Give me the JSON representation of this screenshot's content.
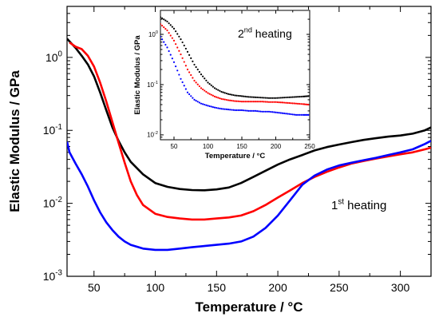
{
  "chart_data": [
    {
      "type": "line",
      "xlabel": "Temperature / °C",
      "ylabel": "Elastic Modulus  / GPa",
      "y_scale": "log",
      "xlim": [
        28,
        325
      ],
      "ylim": [
        0.001,
        5
      ],
      "x_ticks": [
        50,
        100,
        150,
        200,
        250,
        300
      ],
      "x_tick_labels": [
        "50",
        "100",
        "150",
        "200",
        "250",
        "300"
      ],
      "y_ticks": [
        0.001,
        0.01,
        0.1,
        1
      ],
      "y_tick_labels": [
        {
          "base": "10",
          "exp": "-3"
        },
        {
          "base": "10",
          "exp": "-2"
        },
        {
          "base": "10",
          "exp": "-1"
        },
        {
          "base": "10",
          "exp": "0"
        }
      ],
      "annotation": {
        "text": "1",
        "sup": "st",
        "rest": " heating"
      },
      "series": [
        {
          "color": "#000000",
          "points": [
            [
              28,
              1.8
            ],
            [
              35,
              1.35
            ],
            [
              40,
              1.05
            ],
            [
              45,
              0.8
            ],
            [
              50,
              0.55
            ],
            [
              55,
              0.33
            ],
            [
              60,
              0.19
            ],
            [
              65,
              0.11
            ],
            [
              70,
              0.072
            ],
            [
              75,
              0.05
            ],
            [
              80,
              0.037
            ],
            [
              90,
              0.025
            ],
            [
              100,
              0.019
            ],
            [
              110,
              0.0168
            ],
            [
              120,
              0.0157
            ],
            [
              130,
              0.0152
            ],
            [
              140,
              0.0151
            ],
            [
              150,
              0.0155
            ],
            [
              160,
              0.0165
            ],
            [
              170,
              0.019
            ],
            [
              180,
              0.023
            ],
            [
              190,
              0.028
            ],
            [
              200,
              0.034
            ],
            [
              210,
              0.04
            ],
            [
              220,
              0.046
            ],
            [
              230,
              0.053
            ],
            [
              240,
              0.059
            ],
            [
              250,
              0.064
            ],
            [
              260,
              0.069
            ],
            [
              270,
              0.074
            ],
            [
              280,
              0.078
            ],
            [
              290,
              0.082
            ],
            [
              300,
              0.085
            ],
            [
              310,
              0.09
            ],
            [
              320,
              0.1
            ],
            [
              325,
              0.11
            ]
          ]
        },
        {
          "color": "#ff0000",
          "points": [
            [
              30,
              1.6
            ],
            [
              35,
              1.4
            ],
            [
              40,
              1.3
            ],
            [
              45,
              1.05
            ],
            [
              50,
              0.75
            ],
            [
              55,
              0.45
            ],
            [
              60,
              0.25
            ],
            [
              65,
              0.13
            ],
            [
              70,
              0.068
            ],
            [
              75,
              0.036
            ],
            [
              80,
              0.02
            ],
            [
              85,
              0.013
            ],
            [
              90,
              0.0095
            ],
            [
              100,
              0.0072
            ],
            [
              110,
              0.0065
            ],
            [
              120,
              0.0062
            ],
            [
              130,
              0.006
            ],
            [
              140,
              0.006
            ],
            [
              150,
              0.0062
            ],
            [
              160,
              0.0064
            ],
            [
              170,
              0.0068
            ],
            [
              180,
              0.0078
            ],
            [
              190,
              0.0095
            ],
            [
              200,
              0.012
            ],
            [
              210,
              0.015
            ],
            [
              220,
              0.019
            ],
            [
              230,
              0.023
            ],
            [
              240,
              0.027
            ],
            [
              250,
              0.031
            ],
            [
              260,
              0.035
            ],
            [
              270,
              0.038
            ],
            [
              280,
              0.041
            ],
            [
              290,
              0.044
            ],
            [
              300,
              0.047
            ],
            [
              310,
              0.05
            ],
            [
              320,
              0.055
            ],
            [
              325,
              0.058
            ]
          ]
        },
        {
          "color": "#0000ff",
          "points": [
            [
              28,
              0.07
            ],
            [
              30,
              0.05
            ],
            [
              35,
              0.035
            ],
            [
              40,
              0.025
            ],
            [
              45,
              0.017
            ],
            [
              50,
              0.011
            ],
            [
              55,
              0.0075
            ],
            [
              60,
              0.0055
            ],
            [
              65,
              0.0043
            ],
            [
              70,
              0.0035
            ],
            [
              75,
              0.003
            ],
            [
              80,
              0.0027
            ],
            [
              90,
              0.0024
            ],
            [
              100,
              0.0023
            ],
            [
              110,
              0.0023
            ],
            [
              120,
              0.0024
            ],
            [
              130,
              0.0025
            ],
            [
              140,
              0.0026
            ],
            [
              150,
              0.0027
            ],
            [
              160,
              0.0028
            ],
            [
              170,
              0.003
            ],
            [
              180,
              0.0035
            ],
            [
              190,
              0.0046
            ],
            [
              200,
              0.0068
            ],
            [
              210,
              0.011
            ],
            [
              220,
              0.018
            ],
            [
              230,
              0.024
            ],
            [
              240,
              0.029
            ],
            [
              250,
              0.033
            ],
            [
              260,
              0.036
            ],
            [
              270,
              0.039
            ],
            [
              280,
              0.042
            ],
            [
              290,
              0.046
            ],
            [
              300,
              0.05
            ],
            [
              310,
              0.055
            ],
            [
              320,
              0.065
            ],
            [
              325,
              0.072
            ]
          ]
        }
      ]
    },
    {
      "type": "scatter",
      "xlabel": "Temperature / °C",
      "ylabel": "Elastic Modulus  / GPa",
      "y_scale": "log",
      "xlim": [
        30,
        250
      ],
      "ylim": [
        0.008,
        3
      ],
      "x_ticks": [
        50,
        100,
        150,
        200,
        250
      ],
      "x_tick_labels": [
        "50",
        "100",
        "150",
        "200",
        "250"
      ],
      "y_ticks": [
        0.01,
        0.1,
        1
      ],
      "y_tick_labels": [
        {
          "base": "10",
          "exp": "-2"
        },
        {
          "base": "10",
          "exp": "-1"
        },
        {
          "base": "10",
          "exp": "0"
        }
      ],
      "annotation": {
        "text": "2",
        "sup": "nd",
        "rest": " heating"
      },
      "series": [
        {
          "color": "#000000",
          "points": [
            [
              30,
              2.2
            ],
            [
              40,
              1.8
            ],
            [
              50,
              1.3
            ],
            [
              60,
              0.8
            ],
            [
              70,
              0.45
            ],
            [
              80,
              0.25
            ],
            [
              90,
              0.16
            ],
            [
              100,
              0.11
            ],
            [
              110,
              0.085
            ],
            [
              120,
              0.072
            ],
            [
              130,
              0.065
            ],
            [
              140,
              0.061
            ],
            [
              150,
              0.059
            ],
            [
              160,
              0.057
            ],
            [
              170,
              0.056
            ],
            [
              180,
              0.055
            ],
            [
              190,
              0.054
            ],
            [
              200,
              0.054
            ],
            [
              210,
              0.055
            ],
            [
              220,
              0.056
            ],
            [
              230,
              0.057
            ],
            [
              240,
              0.058
            ],
            [
              248,
              0.059
            ]
          ]
        },
        {
          "color": "#ff0000",
          "points": [
            [
              30,
              1.6
            ],
            [
              40,
              1.2
            ],
            [
              50,
              0.75
            ],
            [
              60,
              0.4
            ],
            [
              70,
              0.2
            ],
            [
              80,
              0.12
            ],
            [
              90,
              0.085
            ],
            [
              100,
              0.068
            ],
            [
              110,
              0.058
            ],
            [
              120,
              0.052
            ],
            [
              130,
              0.049
            ],
            [
              140,
              0.047
            ],
            [
              150,
              0.046
            ],
            [
              160,
              0.046
            ],
            [
              170,
              0.046
            ],
            [
              180,
              0.046
            ],
            [
              190,
              0.045
            ],
            [
              200,
              0.045
            ],
            [
              210,
              0.044
            ],
            [
              220,
              0.043
            ],
            [
              230,
              0.042
            ],
            [
              240,
              0.041
            ],
            [
              248,
              0.04
            ]
          ]
        },
        {
          "color": "#0000ff",
          "points": [
            [
              30,
              0.9
            ],
            [
              40,
              0.55
            ],
            [
              50,
              0.28
            ],
            [
              60,
              0.13
            ],
            [
              70,
              0.07
            ],
            [
              80,
              0.05
            ],
            [
              90,
              0.042
            ],
            [
              100,
              0.038
            ],
            [
              110,
              0.035
            ],
            [
              120,
              0.033
            ],
            [
              130,
              0.032
            ],
            [
              140,
              0.031
            ],
            [
              150,
              0.031
            ],
            [
              160,
              0.03
            ],
            [
              170,
              0.03
            ],
            [
              180,
              0.029
            ],
            [
              190,
              0.029
            ],
            [
              200,
              0.028
            ],
            [
              210,
              0.027
            ],
            [
              220,
              0.026
            ],
            [
              230,
              0.025
            ],
            [
              240,
              0.025
            ],
            [
              248,
              0.025
            ]
          ]
        }
      ]
    }
  ]
}
